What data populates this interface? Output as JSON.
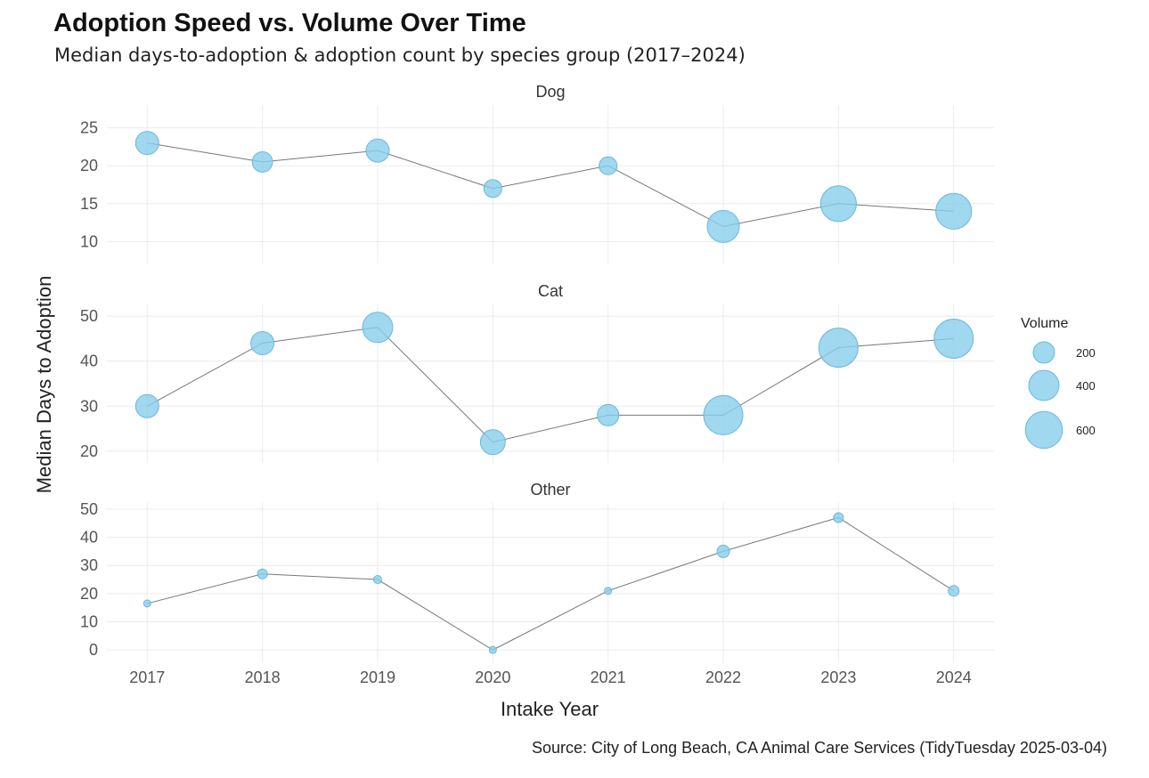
{
  "chart_data": {
    "type": "scatter",
    "subtype": "faceted line + bubble",
    "title": "Adoption Speed vs. Volume Over Time",
    "subtitle": "Median days-to-adoption & adoption count by species group (2017–2024)",
    "caption": "Source: City of Long Beach, CA Animal Care Services (TidyTuesday 2025-03-04)",
    "xlabel": "Intake Year",
    "ylabel": "Median Days to Adoption",
    "x": [
      2017,
      2018,
      2019,
      2020,
      2021,
      2022,
      2023,
      2024
    ],
    "x_ticks": [
      "2017",
      "2018",
      "2019",
      "2020",
      "2021",
      "2022",
      "2023",
      "2024"
    ],
    "grid": true,
    "point_color": "#87CEEB",
    "line_color": "#777777",
    "legend": {
      "title": "Volume",
      "position": "right",
      "entries": [
        {
          "label": "200",
          "value": 200
        },
        {
          "label": "400",
          "value": 400
        },
        {
          "label": "600",
          "value": 600
        }
      ]
    },
    "panels": [
      {
        "name": "Dog",
        "ylim": [
          7,
          28
        ],
        "y_ticks": [
          10,
          15,
          20,
          25
        ],
        "y": [
          23,
          20.5,
          22,
          17,
          20,
          12,
          15,
          14
        ],
        "volume": [
          235,
          180,
          235,
          140,
          140,
          450,
          560,
          560
        ]
      },
      {
        "name": "Cat",
        "ylim": [
          17.4,
          52.6
        ],
        "y_ticks": [
          20,
          30,
          40,
          50
        ],
        "y": [
          30,
          44,
          47.5,
          22,
          28,
          28,
          43,
          45
        ],
        "volume": [
          235,
          235,
          400,
          270,
          200,
          670,
          670,
          670
        ]
      },
      {
        "name": "Other",
        "ylim": [
          -4.7,
          52.2
        ],
        "y_ticks": [
          0,
          10,
          20,
          30,
          40,
          50
        ],
        "y": [
          16.5,
          27,
          25,
          0,
          21,
          35,
          47,
          21
        ],
        "volume": [
          22,
          42,
          28,
          22,
          22,
          68,
          42,
          50
        ]
      }
    ]
  }
}
